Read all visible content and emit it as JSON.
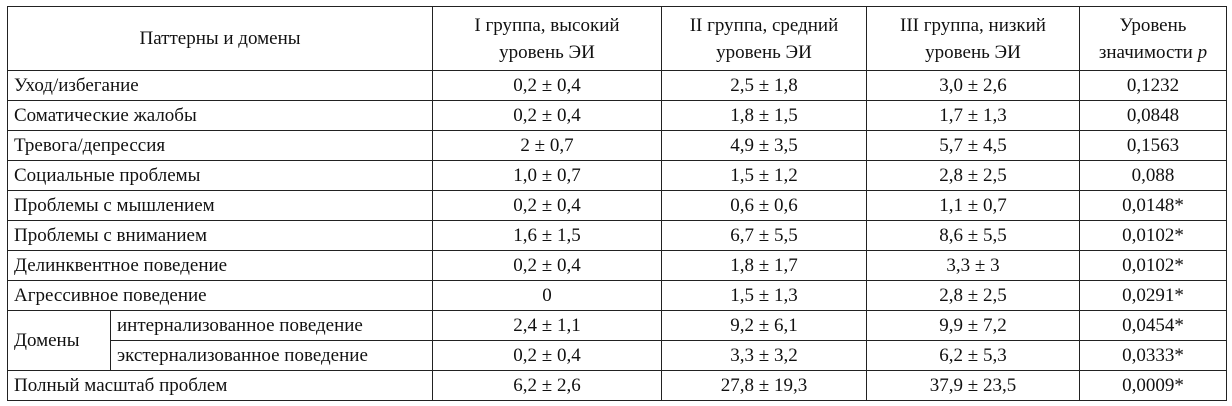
{
  "table": {
    "headers": {
      "patterns": "Паттерны и домены",
      "group1_line1": "I группа, высокий",
      "group1_line2": "уровень ЭИ",
      "group2_line1": "II группа, средний",
      "group2_line2": "уровень ЭИ",
      "group3_line1": "III группа, низкий",
      "group3_line2": "уровень ЭИ",
      "p_line1": "Уровень",
      "p_line2": "значимости",
      "p_symbol": "p"
    },
    "rows": [
      {
        "label": "Уход/избегание",
        "g1": "0,2 ± 0,4",
        "g2": "2,5 ± 1,8",
        "g3": "3,0 ± 2,6",
        "p": "0,1232"
      },
      {
        "label": "Соматические жалобы",
        "g1": "0,2 ± 0,4",
        "g2": "1,8 ± 1,5",
        "g3": "1,7 ± 1,3",
        "p": "0,0848"
      },
      {
        "label": "Тревога/депрессия",
        "g1": "2 ± 0,7",
        "g2": "4,9 ± 3,5",
        "g3": "5,7 ± 4,5",
        "p": "0,1563"
      },
      {
        "label": "Социальные проблемы",
        "g1": "1,0 ± 0,7",
        "g2": "1,5 ± 1,2",
        "g3": "2,8 ± 2,5",
        "p": "0,088"
      },
      {
        "label": "Проблемы с мышлением",
        "g1": "0,2 ± 0,4",
        "g2": "0,6 ± 0,6",
        "g3": "1,1 ± 0,7",
        "p": "0,0148*"
      },
      {
        "label": "Проблемы с вниманием",
        "g1": "1,6 ± 1,5",
        "g2": "6,7 ± 5,5",
        "g3": "8,6 ± 5,5",
        "p": "0,0102*"
      },
      {
        "label": "Делинквентное поведение",
        "g1": "0,2 ± 0,4",
        "g2": "1,8 ± 1,7",
        "g3": "3,3 ± 3",
        "p": "0,0102*"
      },
      {
        "label": "Агрессивное поведение",
        "g1": "0",
        "g2": "1,5 ± 1,3",
        "g3": "2,8 ± 2,5",
        "p": "0,0291*"
      }
    ],
    "domains": {
      "label": "Домены",
      "rows": [
        {
          "label": "интернализованное поведение",
          "g1": "2,4 ± 1,1",
          "g2": "9,2 ± 6,1",
          "g3": "9,9 ± 7,2",
          "p": "0,0454*"
        },
        {
          "label": "экстернализованное поведение",
          "g1": "0,2 ± 0,4",
          "g2": "3,3 ± 3,2",
          "g3": "6,2 ± 5,3",
          "p": "0,0333*"
        }
      ]
    },
    "total": {
      "label": "Полный масштаб проблем",
      "g1": "6,2 ± 2,6",
      "g2": "27,8 ± 19,3",
      "g3": "37,9 ± 23,5",
      "p": "0,0009*"
    }
  }
}
